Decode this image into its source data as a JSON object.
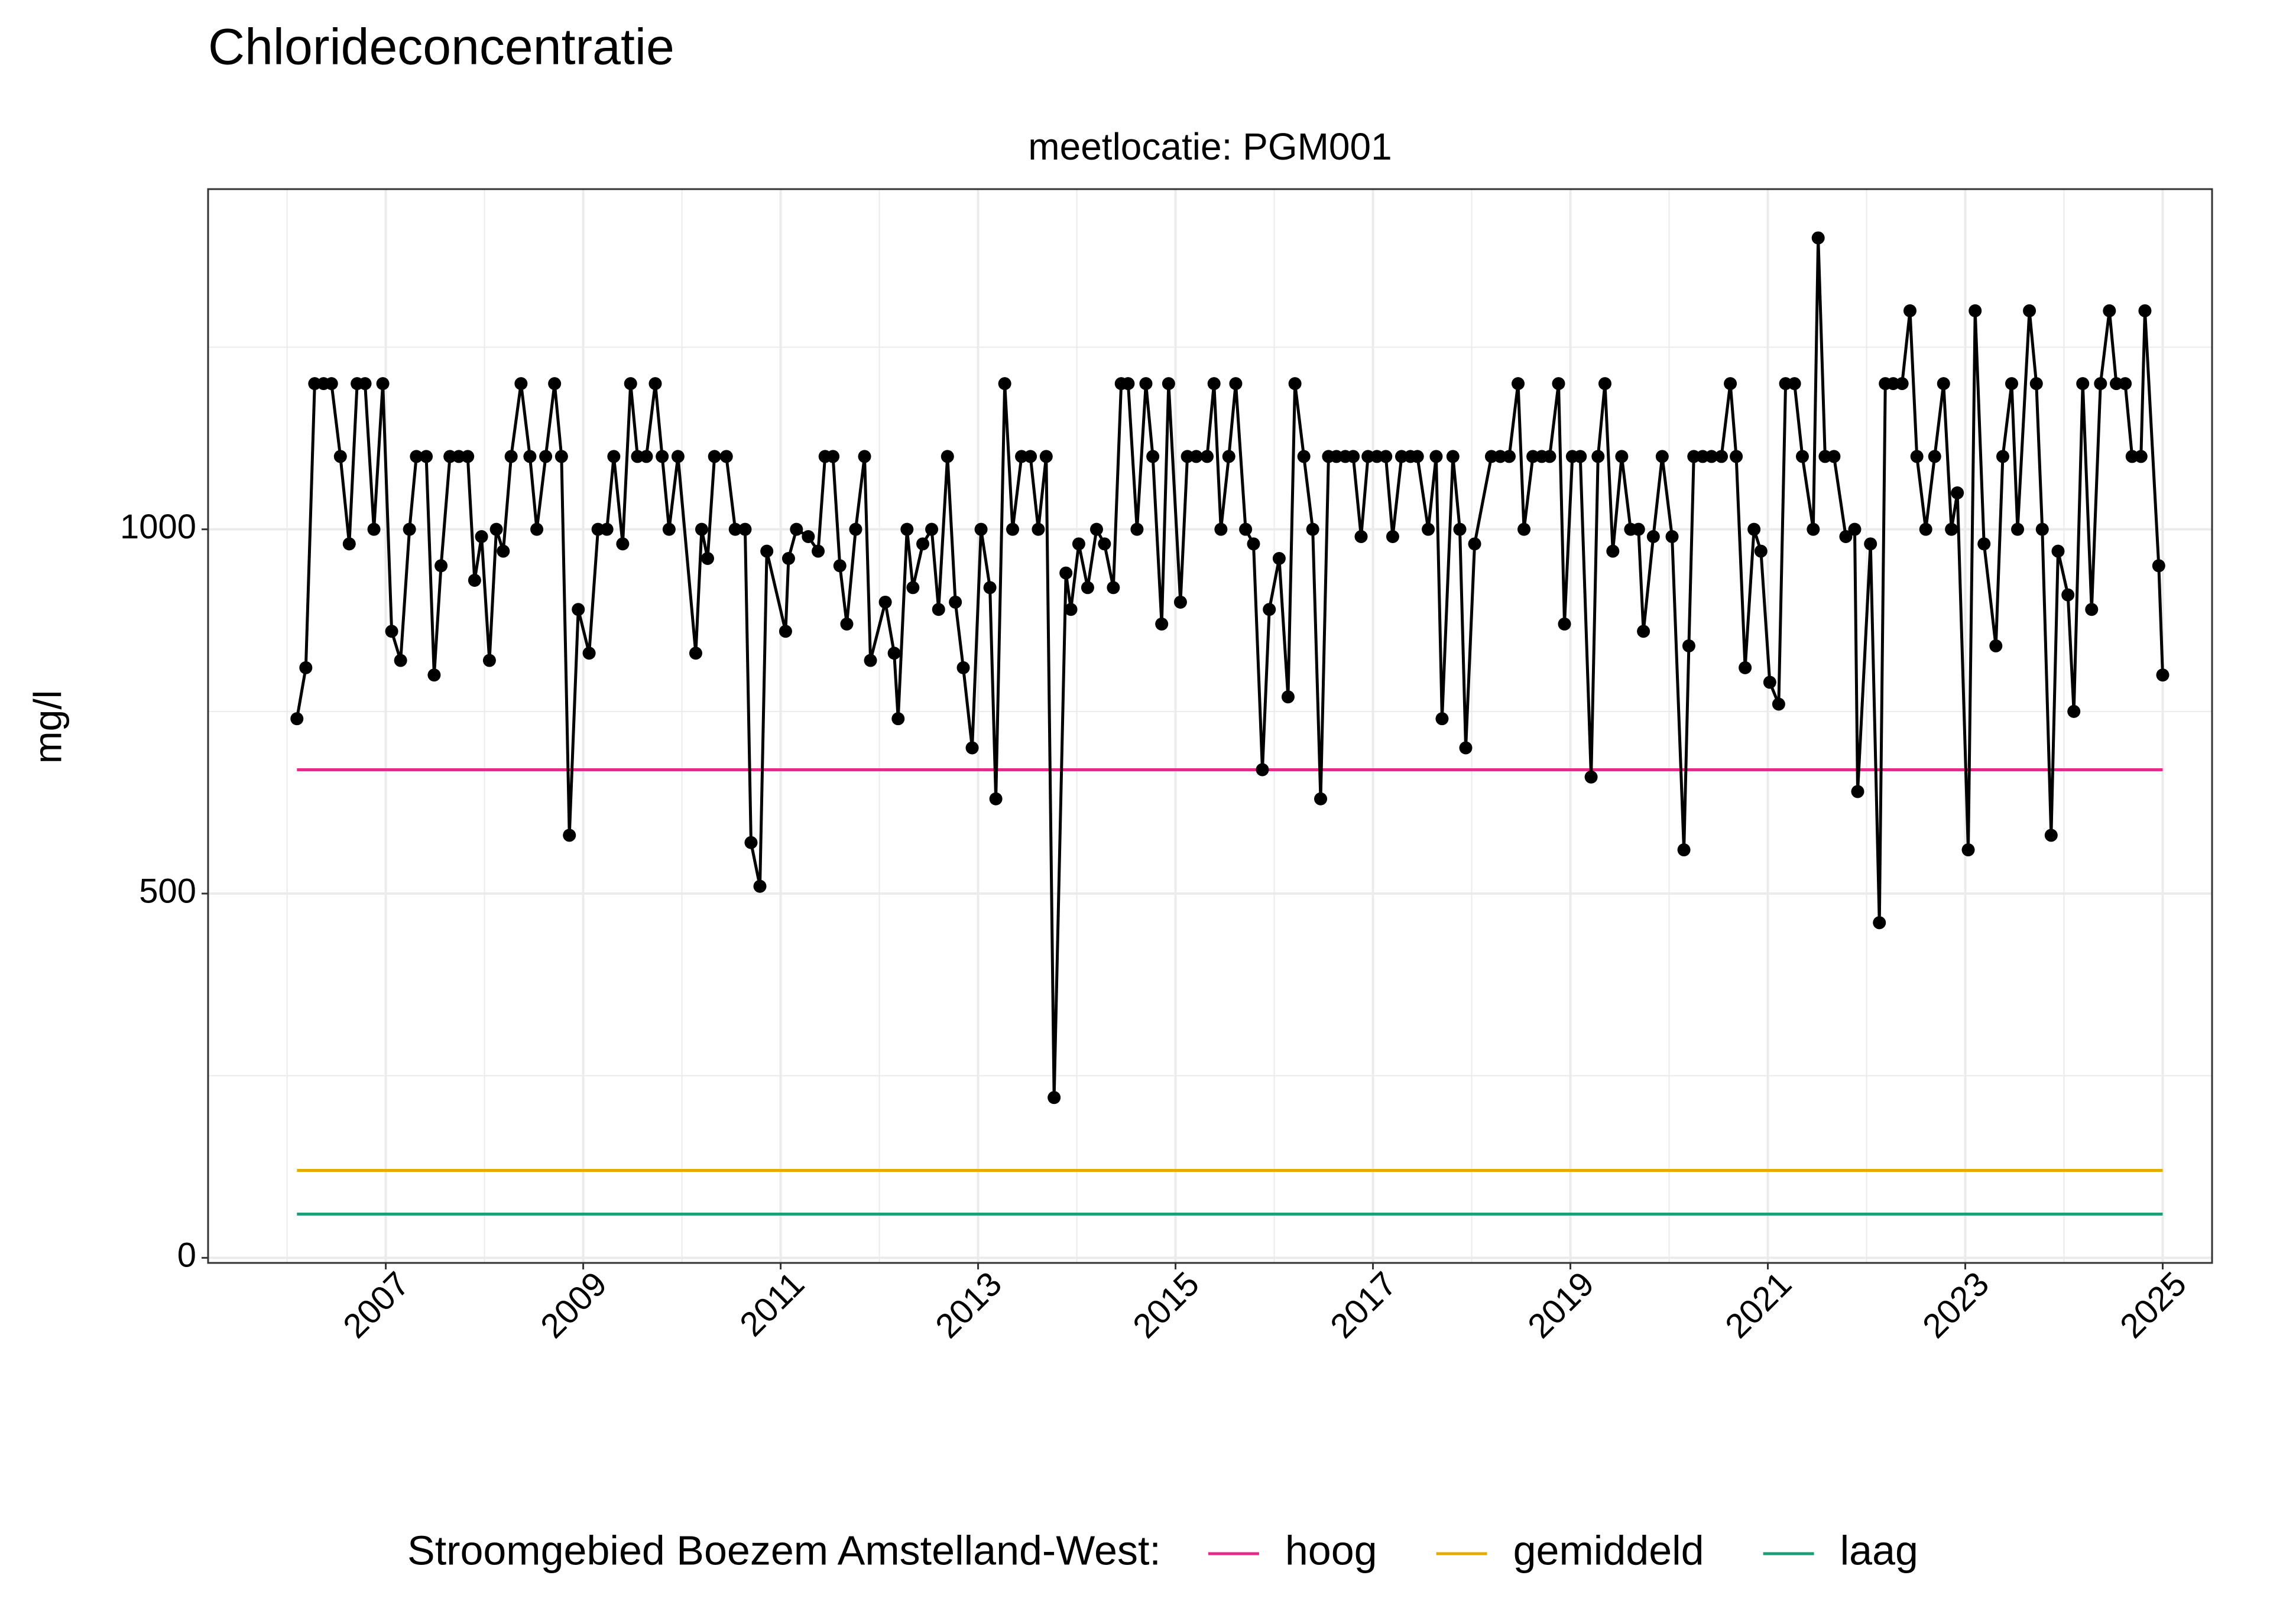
{
  "chart_data": {
    "type": "line",
    "title": "Chlorideconcentratie",
    "subtitle": "meetlocatie: PGM001",
    "y_label": "mg/l",
    "color": "#000000",
    "x": [
      2006.1,
      2006.19,
      2006.28,
      2006.37,
      2006.45,
      2006.54,
      2006.63,
      2006.71,
      2006.79,
      2006.88,
      2006.97,
      2007.06,
      2007.15,
      2007.24,
      2007.31,
      2007.41,
      2007.49,
      2007.56,
      2007.65,
      2007.74,
      2007.83,
      2007.9,
      2007.97,
      2008.05,
      2008.12,
      2008.19,
      2008.27,
      2008.37,
      2008.46,
      2008.53,
      2008.62,
      2008.71,
      2008.78,
      2008.86,
      2008.95,
      2009.06,
      2009.15,
      2009.24,
      2009.31,
      2009.4,
      2009.48,
      2009.55,
      2009.64,
      2009.73,
      2009.8,
      2009.87,
      2009.96,
      2010.14,
      2010.2,
      2010.26,
      2010.33,
      2010.45,
      2010.54,
      2010.64,
      2010.7,
      2010.79,
      2010.86,
      2011.05,
      2011.08,
      2011.16,
      2011.28,
      2011.38,
      2011.45,
      2011.53,
      2011.6,
      2011.67,
      2011.76,
      2011.85,
      2011.91,
      2012.06,
      2012.15,
      2012.19,
      2012.28,
      2012.34,
      2012.44,
      2012.53,
      2012.6,
      2012.69,
      2012.77,
      2012.85,
      2012.94,
      2013.03,
      2013.12,
      2013.18,
      2013.27,
      2013.35,
      2013.44,
      2013.53,
      2013.61,
      2013.69,
      2013.77,
      2013.89,
      2013.94,
      2014.02,
      2014.11,
      2014.2,
      2014.28,
      2014.37,
      2014.45,
      2014.52,
      2014.61,
      2014.7,
      2014.77,
      2014.86,
      2014.93,
      2015.05,
      2015.12,
      2015.21,
      2015.32,
      2015.39,
      2015.46,
      2015.54,
      2015.61,
      2015.71,
      2015.79,
      2015.88,
      2015.95,
      2016.05,
      2016.14,
      2016.21,
      2016.3,
      2016.39,
      2016.47,
      2016.55,
      2016.63,
      2016.72,
      2016.8,
      2016.88,
      2016.95,
      2017.04,
      2017.13,
      2017.2,
      2017.29,
      2017.38,
      2017.45,
      2017.56,
      2017.64,
      2017.7,
      2017.81,
      2017.88,
      2017.94,
      2018.03,
      2018.2,
      2018.29,
      2018.38,
      2018.47,
      2018.53,
      2018.62,
      2018.71,
      2018.79,
      2018.88,
      2018.94,
      2019.02,
      2019.1,
      2019.21,
      2019.28,
      2019.35,
      2019.43,
      2019.52,
      2019.61,
      2019.69,
      2019.74,
      2019.84,
      2019.93,
      2020.03,
      2020.15,
      2020.2,
      2020.25,
      2020.34,
      2020.43,
      2020.53,
      2020.62,
      2020.68,
      2020.77,
      2020.86,
      2020.93,
      2021.02,
      2021.11,
      2021.18,
      2021.27,
      2021.35,
      2021.46,
      2021.51,
      2021.58,
      2021.67,
      2021.79,
      2021.88,
      2021.91,
      2022.04,
      2022.13,
      2022.19,
      2022.27,
      2022.36,
      2022.44,
      2022.51,
      2022.6,
      2022.69,
      2022.78,
      2022.86,
      2022.92,
      2023.03,
      2023.1,
      2023.19,
      2023.31,
      2023.38,
      2023.47,
      2023.53,
      2023.65,
      2023.72,
      2023.78,
      2023.87,
      2023.94,
      2024.04,
      2024.1,
      2024.19,
      2024.28,
      2024.37,
      2024.46,
      2024.53,
      2024.62,
      2024.69,
      2024.78,
      2024.82,
      2024.96,
      2025.0
    ],
    "values": [
      740,
      810,
      1200,
      1200,
      1200,
      1100,
      980,
      1200,
      1200,
      1000,
      1200,
      860,
      820,
      1000,
      1100,
      1100,
      800,
      950,
      1100,
      1100,
      1100,
      930,
      990,
      820,
      1000,
      970,
      1100,
      1200,
      1100,
      1000,
      1100,
      1200,
      1100,
      580,
      890,
      830,
      1000,
      1000,
      1100,
      980,
      1200,
      1100,
      1100,
      1200,
      1100,
      1000,
      1100,
      830,
      1000,
      960,
      1100,
      1100,
      1000,
      1000,
      570,
      510,
      970,
      860,
      960,
      1000,
      990,
      970,
      1100,
      1100,
      950,
      870,
      1000,
      1100,
      820,
      900,
      830,
      740,
      1000,
      920,
      980,
      1000,
      890,
      1100,
      900,
      810,
      700,
      1000,
      920,
      630,
      1200,
      1000,
      1100,
      1100,
      1000,
      1100,
      220,
      940,
      890,
      980,
      920,
      1000,
      980,
      920,
      1200,
      1200,
      1000,
      1200,
      1100,
      870,
      1200,
      900,
      1100,
      1100,
      1100,
      1200,
      1000,
      1100,
      1200,
      1000,
      980,
      670,
      890,
      960,
      770,
      1200,
      1100,
      1000,
      630,
      1100,
      1100,
      1100,
      1100,
      990,
      1100,
      1100,
      1100,
      990,
      1100,
      1100,
      1100,
      1000,
      1100,
      740,
      1100,
      1000,
      700,
      980,
      1100,
      1100,
      1100,
      1200,
      1000,
      1100,
      1100,
      1100,
      1200,
      870,
      1100,
      1100,
      660,
      1100,
      1200,
      970,
      1100,
      1000,
      1000,
      860,
      990,
      1100,
      990,
      560,
      840,
      1100,
      1100,
      1100,
      1100,
      1200,
      1100,
      810,
      1000,
      970,
      790,
      760,
      1200,
      1200,
      1100,
      1000,
      1400,
      1100,
      1100,
      990,
      1000,
      640,
      980,
      460,
      1200,
      1200,
      1200,
      1300,
      1100,
      1000,
      1100,
      1200,
      1000,
      1050,
      560,
      1300,
      980,
      840,
      1100,
      1200,
      1000,
      1300,
      1200,
      1000,
      580,
      970,
      910,
      750,
      1200,
      890,
      1200,
      1300,
      1200,
      1200,
      1100,
      1100,
      1300,
      950,
      800
    ],
    "reference_lines": [
      {
        "name": "hoog",
        "color": "#e7298a",
        "value": 670
      },
      {
        "name": "gemiddeld",
        "color": "#e6ab02",
        "value": 120
      },
      {
        "name": "laag",
        "color": "#1b9e77",
        "value": 60
      }
    ],
    "legend_title": "Stroomgebied Boezem Amstelland-West:",
    "legend_position": "bottom",
    "xlim": [
      2005.2,
      2025.5
    ],
    "xticks": [
      2007,
      2009,
      2011,
      2013,
      2015,
      2017,
      2019,
      2021,
      2023,
      2025
    ],
    "xminorticks": [
      2006,
      2008,
      2010,
      2012,
      2014,
      2016,
      2018,
      2020,
      2022,
      2024
    ],
    "ylim": [
      -7,
      1467
    ],
    "yticks": [
      0,
      500,
      1000
    ],
    "yminorticks": [
      250,
      750,
      1250
    ],
    "grid": true
  }
}
